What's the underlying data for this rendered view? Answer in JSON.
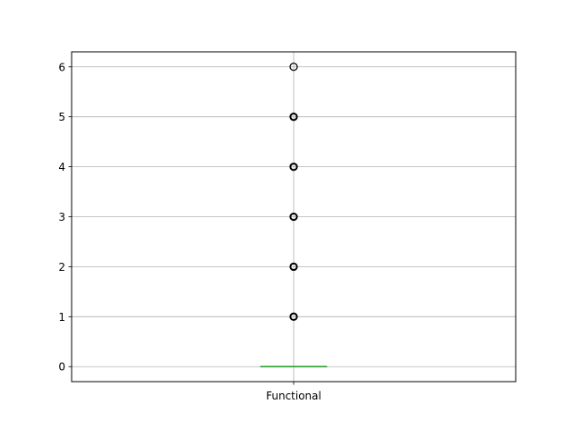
{
  "chart_data": {
    "type": "box",
    "categories": [
      "Functional"
    ],
    "title": "",
    "xlabel": "",
    "ylabel": "",
    "ylim": [
      -0.3,
      6.3
    ],
    "yticks": [
      0,
      1,
      2,
      3,
      4,
      5,
      6
    ],
    "grid": true,
    "box": {
      "min": 0,
      "q1": 0,
      "median": 0,
      "q3": 0,
      "max": 0
    },
    "outliers": [
      1,
      2,
      3,
      4,
      5,
      6
    ],
    "colors": {
      "median": "#2ca02c",
      "box": "#1f77b4",
      "grid": "#b0b0b0",
      "outlier": "#000000"
    }
  }
}
